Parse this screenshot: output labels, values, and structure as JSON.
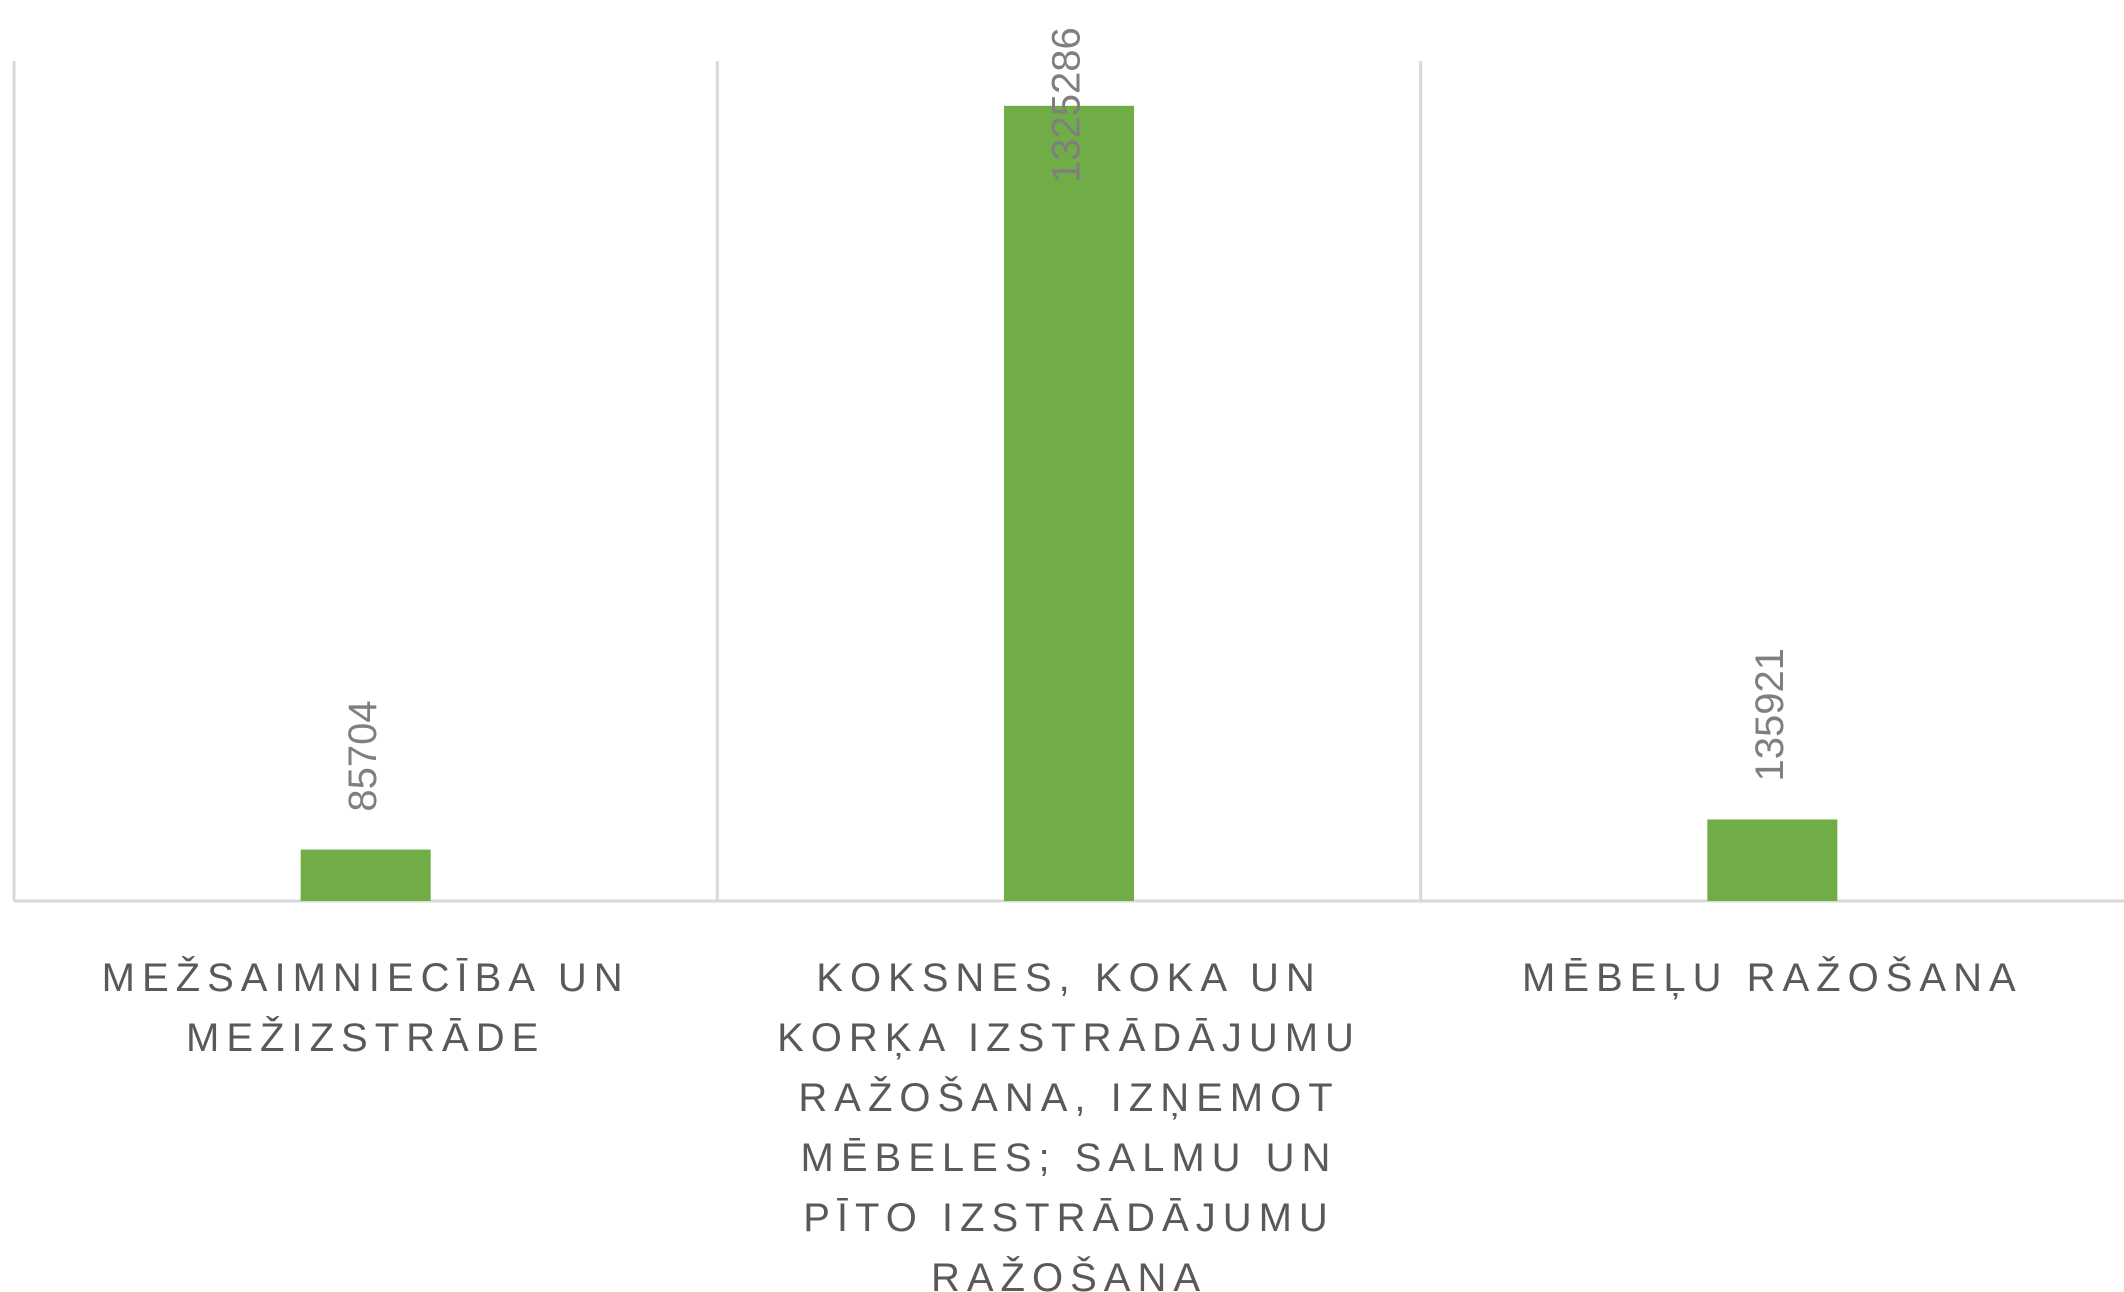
{
  "chart_data": {
    "type": "bar",
    "categories": [
      "MEŽSAIMNIECĪBA UN MEŽIZSTRĀDE",
      "KOKSNES, KOKA UN KORĶA IZSTRĀDĀJUMU RAŽOŠANA, IZŅEMOT MĒBELES; SALMU UN PĪTO IZSTRĀDĀJUMU RAŽOŠANA",
      "MĒBEĻU RAŽOŠANA"
    ],
    "values": [
      85704,
      1325286,
      135921
    ],
    "color": "#70ad47",
    "ylim": [
      0,
      1400000
    ]
  }
}
